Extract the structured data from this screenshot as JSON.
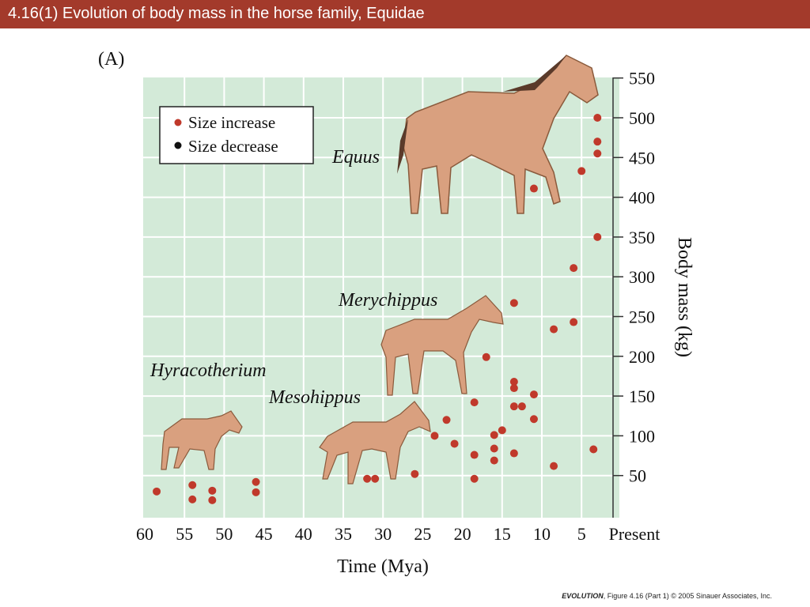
{
  "header": {
    "title": "4.16(1)  Evolution of body mass in the horse family, Equidae"
  },
  "panel_label": "(A)",
  "credit": {
    "book": "EVOLUTION",
    "figure": ", Figure 4.16 (Part 1)",
    "rest": "  © 2005 Sinauer Associates, Inc."
  },
  "colors": {
    "title_bar": "#a33a2b",
    "plot_bg": "#d3ead8",
    "increase": "#c0392b",
    "decrease": "#111111",
    "horse": "#d9a07f"
  },
  "chart_data": {
    "type": "scatter",
    "xlabel": "Time (Mya)",
    "ylabel": "Body mass (kg)",
    "xlim": [
      60,
      0
    ],
    "ylim": [
      0,
      550
    ],
    "grid": true,
    "x_ticks": [
      "60",
      "55",
      "50",
      "45",
      "40",
      "35",
      "30",
      "25",
      "20",
      "15",
      "10",
      "5",
      "Present"
    ],
    "x_tick_values": [
      60,
      55,
      50,
      45,
      40,
      35,
      30,
      25,
      20,
      15,
      10,
      5,
      0
    ],
    "y_ticks": [
      "50",
      "100",
      "150",
      "200",
      "250",
      "300",
      "350",
      "400",
      "450",
      "500",
      "550"
    ],
    "y_tick_values": [
      50,
      100,
      150,
      200,
      250,
      300,
      350,
      400,
      450,
      500,
      550
    ],
    "legend": {
      "position": "top-left",
      "entries": [
        {
          "label": "Size increase",
          "color": "#c0392b"
        },
        {
          "label": "Size decrease",
          "color": "#111111"
        }
      ]
    },
    "genera": [
      "Equus",
      "Merychippus",
      "Hyracotherium",
      "Mesohippus"
    ],
    "series": [
      {
        "name": "Size increase",
        "color": "#c0392b",
        "points": [
          [
            58.5,
            30
          ],
          [
            54,
            38
          ],
          [
            54,
            20
          ],
          [
            51.5,
            31
          ],
          [
            51.5,
            19
          ],
          [
            46,
            42
          ],
          [
            46,
            29
          ],
          [
            32,
            46
          ],
          [
            31,
            46
          ],
          [
            26,
            52
          ],
          [
            23.5,
            100
          ],
          [
            22,
            120
          ],
          [
            21,
            90
          ],
          [
            18.5,
            142
          ],
          [
            18.5,
            76
          ],
          [
            18.5,
            46
          ],
          [
            17,
            199
          ],
          [
            16,
            101
          ],
          [
            16,
            84
          ],
          [
            16,
            69
          ],
          [
            15,
            107
          ],
          [
            13.5,
            267
          ],
          [
            13.5,
            168
          ],
          [
            13.5,
            160
          ],
          [
            13.5,
            137
          ],
          [
            13.5,
            78
          ],
          [
            12.5,
            137
          ],
          [
            11,
            152
          ],
          [
            11,
            121
          ],
          [
            11,
            411
          ],
          [
            8.5,
            234
          ],
          [
            8.5,
            62
          ],
          [
            6,
            311
          ],
          [
            6,
            243
          ],
          [
            5,
            433
          ],
          [
            3.5,
            83
          ],
          [
            3,
            500
          ],
          [
            3,
            470
          ],
          [
            3,
            455
          ],
          [
            3,
            350
          ]
        ]
      },
      {
        "name": "Size decrease",
        "color": "#111111",
        "points": []
      }
    ]
  }
}
